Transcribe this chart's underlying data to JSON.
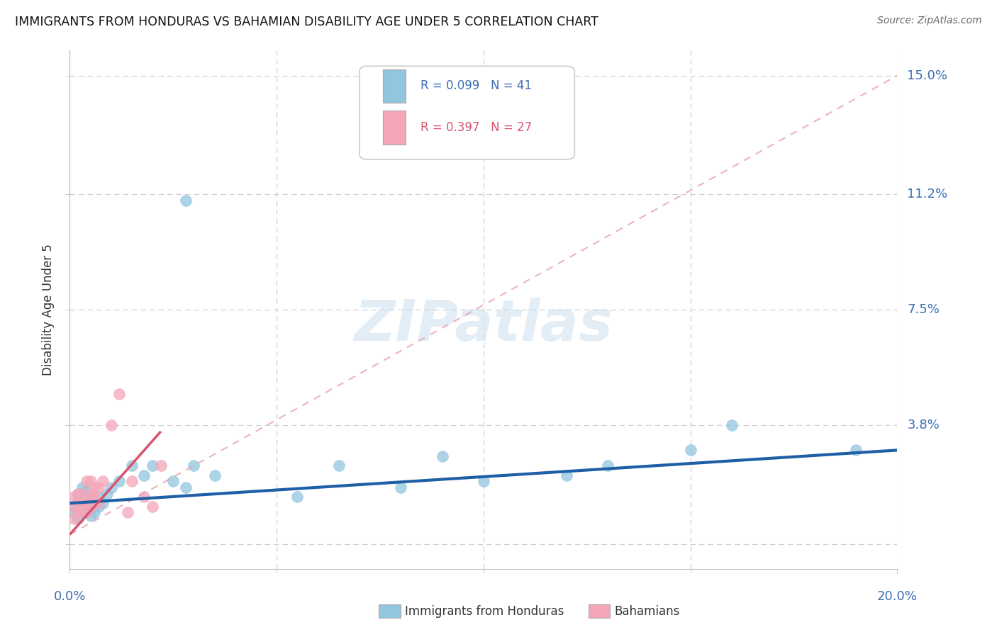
{
  "title": "IMMIGRANTS FROM HONDURAS VS BAHAMIAN DISABILITY AGE UNDER 5 CORRELATION CHART",
  "source": "Source: ZipAtlas.com",
  "ylabel": "Disability Age Under 5",
  "xlim": [
    0.0,
    0.2
  ],
  "ylim": [
    -0.008,
    0.158
  ],
  "yticks": [
    0.0,
    0.038,
    0.075,
    0.112,
    0.15
  ],
  "ytick_labels": [
    "",
    "3.8%",
    "7.5%",
    "11.2%",
    "15.0%"
  ],
  "xticks": [
    0.0,
    0.05,
    0.1,
    0.15,
    0.2
  ],
  "watermark": "ZIPatlas",
  "blue_color": "#92c5de",
  "pink_color": "#f4a6b8",
  "trendline_blue": "#1f5fa6",
  "trendline_pink": "#d9536f",
  "trendline_pink_dash": "#e8a0b0",
  "grid_color": "#d0d0d0",
  "background_color": "#ffffff",
  "honduras_x": [
    0.001,
    0.001,
    0.002,
    0.002,
    0.002,
    0.003,
    0.003,
    0.003,
    0.003,
    0.004,
    0.004,
    0.004,
    0.005,
    0.005,
    0.005,
    0.006,
    0.006,
    0.007,
    0.007,
    0.008,
    0.009,
    0.01,
    0.012,
    0.015,
    0.018,
    0.02,
    0.025,
    0.03,
    0.035,
    0.028,
    0.055,
    0.065,
    0.08,
    0.09,
    0.1,
    0.12,
    0.13,
    0.15,
    0.16,
    0.19,
    0.028
  ],
  "honduras_y": [
    0.01,
    0.012,
    0.008,
    0.014,
    0.016,
    0.01,
    0.012,
    0.015,
    0.018,
    0.01,
    0.013,
    0.017,
    0.009,
    0.011,
    0.015,
    0.01,
    0.013,
    0.012,
    0.015,
    0.013,
    0.016,
    0.018,
    0.02,
    0.025,
    0.022,
    0.025,
    0.02,
    0.025,
    0.022,
    0.11,
    0.015,
    0.025,
    0.018,
    0.028,
    0.02,
    0.022,
    0.025,
    0.03,
    0.038,
    0.03,
    0.018
  ],
  "bahamian_x": [
    0.001,
    0.001,
    0.001,
    0.002,
    0.002,
    0.002,
    0.003,
    0.003,
    0.003,
    0.004,
    0.004,
    0.004,
    0.005,
    0.005,
    0.005,
    0.006,
    0.006,
    0.007,
    0.007,
    0.008,
    0.01,
    0.012,
    0.014,
    0.015,
    0.018,
    0.02,
    0.022
  ],
  "bahamian_y": [
    0.008,
    0.012,
    0.015,
    0.01,
    0.013,
    0.016,
    0.01,
    0.013,
    0.016,
    0.01,
    0.013,
    0.02,
    0.012,
    0.016,
    0.02,
    0.015,
    0.018,
    0.013,
    0.018,
    0.02,
    0.038,
    0.048,
    0.01,
    0.02,
    0.015,
    0.012,
    0.025
  ],
  "blue_trendline_x": [
    0.0,
    0.2
  ],
  "blue_trendline_y": [
    0.013,
    0.03
  ],
  "pink_trendline_x": [
    0.0,
    0.2
  ],
  "pink_trendline_y": [
    0.003,
    0.15
  ]
}
